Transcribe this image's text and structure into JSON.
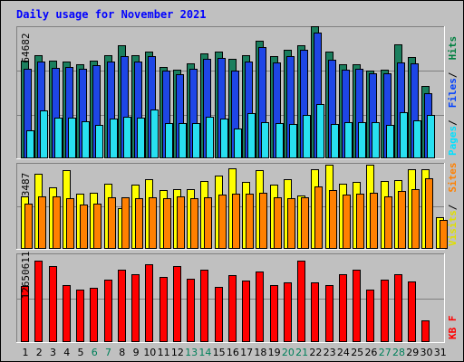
{
  "chart_data": [
    {
      "type": "bar",
      "title": "Daily usage for November 2021",
      "categories": [
        "1",
        "2",
        "3",
        "4",
        "5",
        "6",
        "7",
        "8",
        "9",
        "10",
        "11",
        "12",
        "13",
        "14",
        "15",
        "16",
        "17",
        "18",
        "19",
        "20",
        "21",
        "22",
        "23",
        "24",
        "25",
        "26",
        "27",
        "28",
        "29",
        "30",
        "31"
      ],
      "weekend_days": [
        "6",
        "7",
        "13",
        "14",
        "20",
        "21",
        "27",
        "28"
      ],
      "ytick_label": "64682",
      "ylim": [
        0,
        71000
      ],
      "legend": [
        {
          "label": "Hits",
          "color": "#008040"
        },
        {
          "label": "Files",
          "color": "#0040ff"
        },
        {
          "label": "Pages",
          "color": "#00e0ff"
        }
      ],
      "series": [
        {
          "name": "Hits",
          "color": "#1b7f5e",
          "values": [
            52500,
            55500,
            52500,
            52000,
            50500,
            52500,
            55500,
            61000,
            55500,
            57500,
            49500,
            48000,
            51000,
            56500,
            57500,
            53500,
            55500,
            63500,
            55000,
            58500,
            61000,
            71000,
            57500,
            50500,
            50500,
            47500,
            48000,
            61500,
            54500,
            39000,
            null
          ]
        },
        {
          "name": "Files",
          "color": "#1e46e6",
          "values": [
            48500,
            52000,
            49000,
            49500,
            48500,
            50000,
            52000,
            55000,
            52000,
            55000,
            47500,
            45500,
            48500,
            53500,
            54000,
            47500,
            52000,
            60000,
            51500,
            55000,
            58500,
            67500,
            53000,
            48000,
            48500,
            46000,
            46000,
            51500,
            51000,
            35500,
            null
          ]
        },
        {
          "name": "Pages",
          "color": "#28e0f0",
          "values": [
            15500,
            26000,
            22000,
            22000,
            20500,
            18500,
            21500,
            22500,
            22000,
            26500,
            19500,
            19500,
            19500,
            22500,
            21500,
            16500,
            24500,
            20000,
            19500,
            19000,
            23500,
            29500,
            19000,
            20000,
            20000,
            20000,
            18500,
            25000,
            21000,
            23500,
            null
          ]
        }
      ]
    },
    {
      "type": "bar",
      "categories": [
        "1",
        "2",
        "3",
        "4",
        "5",
        "6",
        "7",
        "8",
        "9",
        "10",
        "11",
        "12",
        "13",
        "14",
        "15",
        "16",
        "17",
        "18",
        "19",
        "20",
        "21",
        "22",
        "23",
        "24",
        "25",
        "26",
        "27",
        "28",
        "29",
        "30",
        "31"
      ],
      "ytick_label": "3487",
      "ylim": [
        0,
        3487
      ],
      "legend": [
        {
          "label": "Sites",
          "color": "#ff8000"
        },
        {
          "label": "Visits",
          "color": "#e0e000"
        }
      ],
      "series": [
        {
          "name": "Visits",
          "color": "#ffff00",
          "values": [
            2200,
            3150,
            2580,
            3290,
            2330,
            2360,
            2720,
            1730,
            2710,
            2940,
            2490,
            2510,
            2500,
            2860,
            3090,
            3360,
            2830,
            3290,
            2690,
            2920,
            2240,
            3340,
            3510,
            2720,
            2810,
            3540,
            2860,
            2880,
            3340,
            3330,
            1360
          ]
        },
        {
          "name": "Sites",
          "color": "#ff8000",
          "values": [
            1920,
            2210,
            2200,
            2150,
            1880,
            1900,
            2160,
            2180,
            2130,
            2160,
            2150,
            2220,
            2140,
            2170,
            2270,
            2340,
            2330,
            2350,
            2180,
            2140,
            2160,
            2610,
            2470,
            2290,
            2330,
            2380,
            2210,
            2430,
            2520,
            2980,
            1220
          ]
        }
      ]
    },
    {
      "type": "bar",
      "categories": [
        "1",
        "2",
        "3",
        "4",
        "5",
        "6",
        "7",
        "8",
        "9",
        "10",
        "11",
        "12",
        "13",
        "14",
        "15",
        "16",
        "17",
        "18",
        "19",
        "20",
        "21",
        "22",
        "23",
        "24",
        "25",
        "26",
        "27",
        "28",
        "29",
        "30",
        "31"
      ],
      "ytick_label": "12650611",
      "ylim": [
        0,
        12650611
      ],
      "legend": [
        {
          "label": "KB F",
          "color": "#ff0000"
        }
      ],
      "series": [
        {
          "name": "KB F",
          "color": "#ff0000",
          "values": [
            8360000,
            11980000,
            11140000,
            8410000,
            7800000,
            8100000,
            9220000,
            10710000,
            10030000,
            11460000,
            9660000,
            11240000,
            9390000,
            10620000,
            8200000,
            9860000,
            9140000,
            10350000,
            8370000,
            8860000,
            11980000,
            8850000,
            8450000,
            9970000,
            10640000,
            7780000,
            9260000,
            10080000,
            8960000,
            3290000,
            null
          ]
        }
      ]
    }
  ]
}
